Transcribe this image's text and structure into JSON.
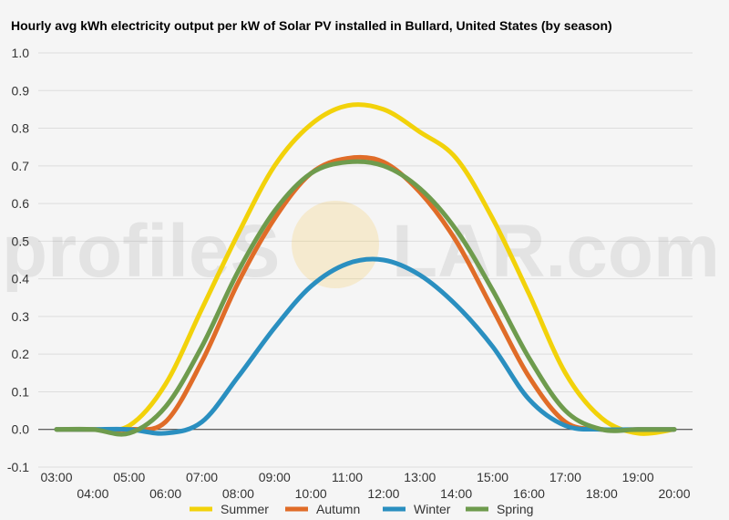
{
  "chart_data": {
    "type": "line",
    "title": "Hourly avg kWh electricity output per kW of Solar PV installed in Bullard, United States (by season)",
    "xlabel": "",
    "ylabel": "",
    "ylim": [
      -0.1,
      1.0
    ],
    "yticks": [
      "-0.1",
      "0.0",
      "0.1",
      "0.2",
      "0.3",
      "0.4",
      "0.5",
      "0.6",
      "0.7",
      "0.8",
      "0.9",
      "1.0"
    ],
    "x": [
      "03:00",
      "04:00",
      "05:00",
      "06:00",
      "07:00",
      "08:00",
      "09:00",
      "10:00",
      "11:00",
      "12:00",
      "13:00",
      "14:00",
      "15:00",
      "16:00",
      "17:00",
      "18:00",
      "19:00",
      "20:00"
    ],
    "grid": true,
    "legend": "bottom",
    "series": [
      {
        "name": "Summer",
        "color": "#f2d20a",
        "values": [
          0.0,
          0.0,
          0.01,
          0.12,
          0.32,
          0.52,
          0.7,
          0.81,
          0.86,
          0.85,
          0.79,
          0.72,
          0.56,
          0.36,
          0.15,
          0.03,
          -0.01,
          0.0
        ]
      },
      {
        "name": "Autumn",
        "color": "#e06c28",
        "values": [
          0.0,
          0.0,
          0.0,
          0.02,
          0.18,
          0.39,
          0.56,
          0.68,
          0.72,
          0.71,
          0.63,
          0.5,
          0.32,
          0.14,
          0.02,
          0.0,
          0.0,
          0.0
        ]
      },
      {
        "name": "Winter",
        "color": "#2a8fc0",
        "values": [
          0.0,
          0.0,
          0.0,
          -0.01,
          0.02,
          0.14,
          0.27,
          0.38,
          0.44,
          0.45,
          0.41,
          0.33,
          0.22,
          0.08,
          0.01,
          0.0,
          0.0,
          0.0
        ]
      },
      {
        "name": "Spring",
        "color": "#6e9b4d",
        "values": [
          0.0,
          0.0,
          -0.01,
          0.06,
          0.22,
          0.42,
          0.58,
          0.68,
          0.71,
          0.7,
          0.64,
          0.53,
          0.37,
          0.19,
          0.05,
          0.0,
          0.0,
          0.0
        ]
      }
    ]
  },
  "watermark": {
    "text_left": "profileS",
    "text_right": "LAR.com",
    "sun_color": "#f6c24a"
  }
}
